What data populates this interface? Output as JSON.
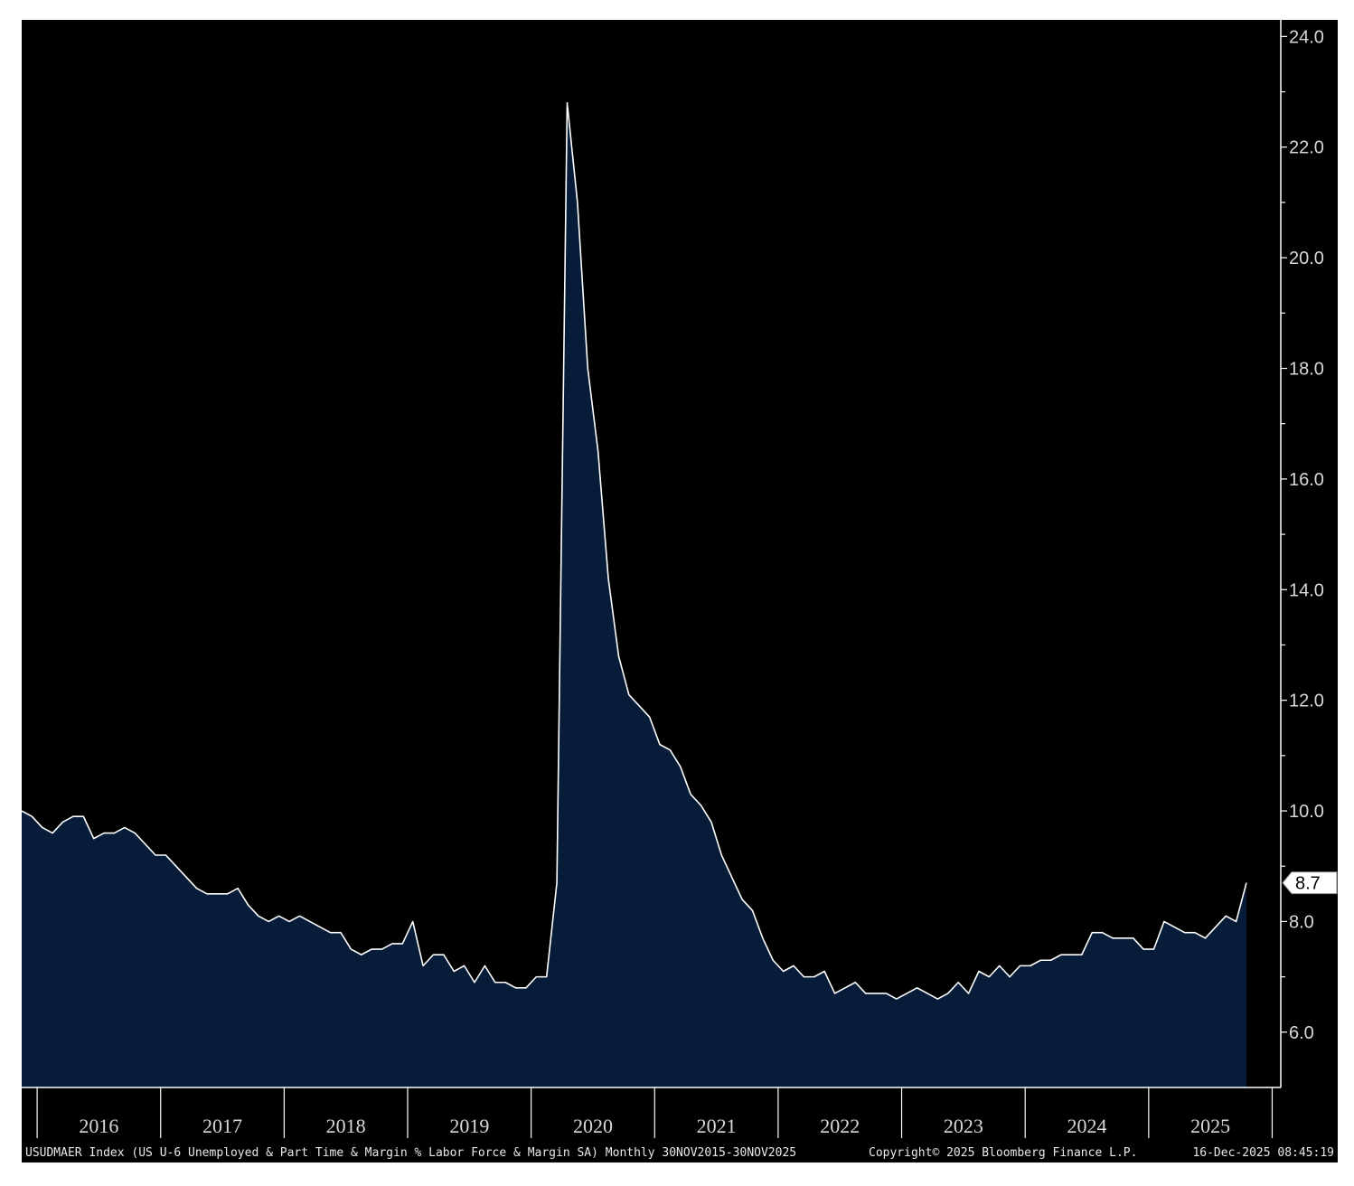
{
  "chart_data": {
    "type": "area",
    "title": "",
    "xlabel": "",
    "ylabel": "",
    "ylim": [
      5.0,
      24.3
    ],
    "yticks": [
      "6.0",
      "8.0",
      "10.0",
      "12.0",
      "14.0",
      "16.0",
      "18.0",
      "20.0",
      "22.0",
      "24.0"
    ],
    "years": [
      "2016",
      "2017",
      "2018",
      "2019",
      "2020",
      "2021",
      "2022",
      "2023",
      "2024",
      "2025"
    ],
    "start": "2015-11",
    "series": [
      {
        "values": [
          10.0,
          9.9,
          9.7,
          9.6,
          9.8,
          9.9,
          9.9,
          9.5,
          9.6,
          9.6,
          9.7,
          9.6,
          9.4,
          9.2,
          9.2,
          9.0,
          8.8,
          8.6,
          8.5,
          8.5,
          8.5,
          8.6,
          8.3,
          8.1,
          8.0,
          8.1,
          8.0,
          8.1,
          8.0,
          7.9,
          7.8,
          7.8,
          7.5,
          7.4,
          7.5,
          7.5,
          7.6,
          7.6,
          8.0,
          7.2,
          7.4,
          7.4,
          7.1,
          7.2,
          6.9,
          7.2,
          6.9,
          6.9,
          6.8,
          6.8,
          7.0,
          7.0,
          8.7,
          22.8,
          21.0,
          18.0,
          16.5,
          14.2,
          12.8,
          12.1,
          11.9,
          11.7,
          11.2,
          11.1,
          10.8,
          10.3,
          10.1,
          9.8,
          9.2,
          8.8,
          8.4,
          8.2,
          7.7,
          7.3,
          7.1,
          7.2,
          7.0,
          7.0,
          7.1,
          6.7,
          6.8,
          6.9,
          6.7,
          6.7,
          6.7,
          6.6,
          6.7,
          6.8,
          6.7,
          6.6,
          6.7,
          6.9,
          6.7,
          7.1,
          7.0,
          7.2,
          7.0,
          7.2,
          7.2,
          7.3,
          7.3,
          7.4,
          7.4,
          7.4,
          7.8,
          7.8,
          7.7,
          7.7,
          7.7,
          7.5,
          7.5,
          8.0,
          7.9,
          7.8,
          7.8,
          7.7,
          7.9,
          8.1,
          8.0,
          8.7
        ]
      }
    ],
    "last_value": "8.7",
    "colors": {
      "fill": "#071c38",
      "line": "#ffffff",
      "background": "#000000",
      "label_box": "#ffffff"
    }
  },
  "footer": {
    "description": "USUDMAER Index (US U-6 Unemployed & Part Time & Margin % Labor Force & Margin SA) Monthly 30NOV2015-30NOV2025",
    "copyright": "Copyright© 2025 Bloomberg Finance L.P.",
    "timestamp": "16-Dec-2025 08:45:19"
  }
}
